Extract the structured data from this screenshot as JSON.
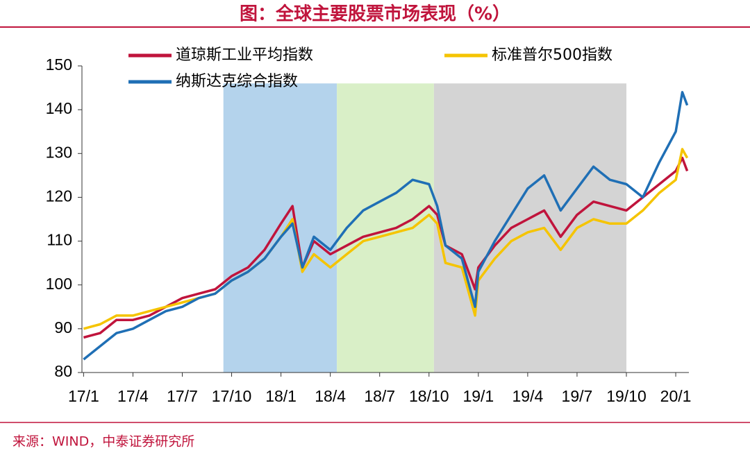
{
  "chart_data": {
    "type": "line",
    "title": "图：全球主要股票市场表现（%）",
    "source": "来源：WIND，中泰证券研究所",
    "x": [
      0,
      1,
      2,
      3,
      4,
      5,
      6,
      7,
      8,
      9,
      10,
      11,
      12,
      12.7,
      13.3,
      14,
      15,
      16,
      17,
      18,
      19,
      20,
      21,
      21.5,
      22,
      23,
      23.8,
      24,
      25,
      26,
      27,
      28,
      29,
      30,
      31,
      32,
      33,
      34,
      35,
      36,
      36.4,
      36.7
    ],
    "series": [
      {
        "name": "道琼斯工业平均指数",
        "color": "#c0143c",
        "values": [
          88,
          89,
          92,
          92,
          93,
          95,
          97,
          98,
          99,
          102,
          104,
          108,
          114,
          118,
          104,
          110,
          107,
          109,
          111,
          112,
          113,
          115,
          118,
          116,
          109,
          107,
          99,
          104,
          109,
          113,
          115,
          117,
          111,
          116,
          119,
          118,
          117,
          120,
          123,
          126,
          129,
          126
        ]
      },
      {
        "name": "标准普尔500指数",
        "color": "#f5c400",
        "values": [
          90,
          91,
          93,
          93,
          94,
          95,
          96,
          97,
          98,
          101,
          103,
          106,
          111,
          115,
          103,
          107,
          104,
          107,
          110,
          111,
          112,
          113,
          116,
          114,
          105,
          104,
          93,
          101,
          106,
          110,
          112,
          113,
          108,
          113,
          115,
          114,
          114,
          117,
          121,
          124,
          131,
          129
        ]
      },
      {
        "name": "纳斯达克综合指数",
        "color": "#1f6fb5",
        "values": [
          83,
          86,
          89,
          90,
          92,
          94,
          95,
          97,
          98,
          101,
          103,
          106,
          111,
          114,
          104,
          111,
          108,
          113,
          117,
          119,
          121,
          124,
          123,
          118,
          109,
          106,
          95,
          103,
          110,
          116,
          122,
          125,
          117,
          122,
          127,
          124,
          123,
          120,
          128,
          135,
          144,
          141
        ]
      }
    ],
    "bands": [
      {
        "from": 8.5,
        "to": 15.4,
        "top": 146,
        "color": "#b4d3ec"
      },
      {
        "from": 15.4,
        "to": 21.3,
        "top": 146,
        "color": "#d9efc7"
      },
      {
        "from": 21.3,
        "to": 33.0,
        "top": 146,
        "color": "#d4d4d4"
      }
    ],
    "xlim": [
      -0.1,
      36.8
    ],
    "xticks": [
      {
        "value": 0,
        "label": "17/1"
      },
      {
        "value": 3,
        "label": "17/4"
      },
      {
        "value": 6,
        "label": "17/7"
      },
      {
        "value": 9,
        "label": "17/10"
      },
      {
        "value": 12,
        "label": "18/1"
      },
      {
        "value": 15,
        "label": "18/4"
      },
      {
        "value": 18,
        "label": "18/7"
      },
      {
        "value": 21,
        "label": "18/10"
      },
      {
        "value": 24,
        "label": "19/1"
      },
      {
        "value": 27,
        "label": "19/4"
      },
      {
        "value": 30,
        "label": "19/7"
      },
      {
        "value": 33,
        "label": "19/10"
      },
      {
        "value": 36,
        "label": "20/1"
      }
    ],
    "ylim": [
      80,
      150
    ],
    "yticks": [
      80,
      90,
      100,
      110,
      120,
      130,
      140,
      150
    ]
  }
}
